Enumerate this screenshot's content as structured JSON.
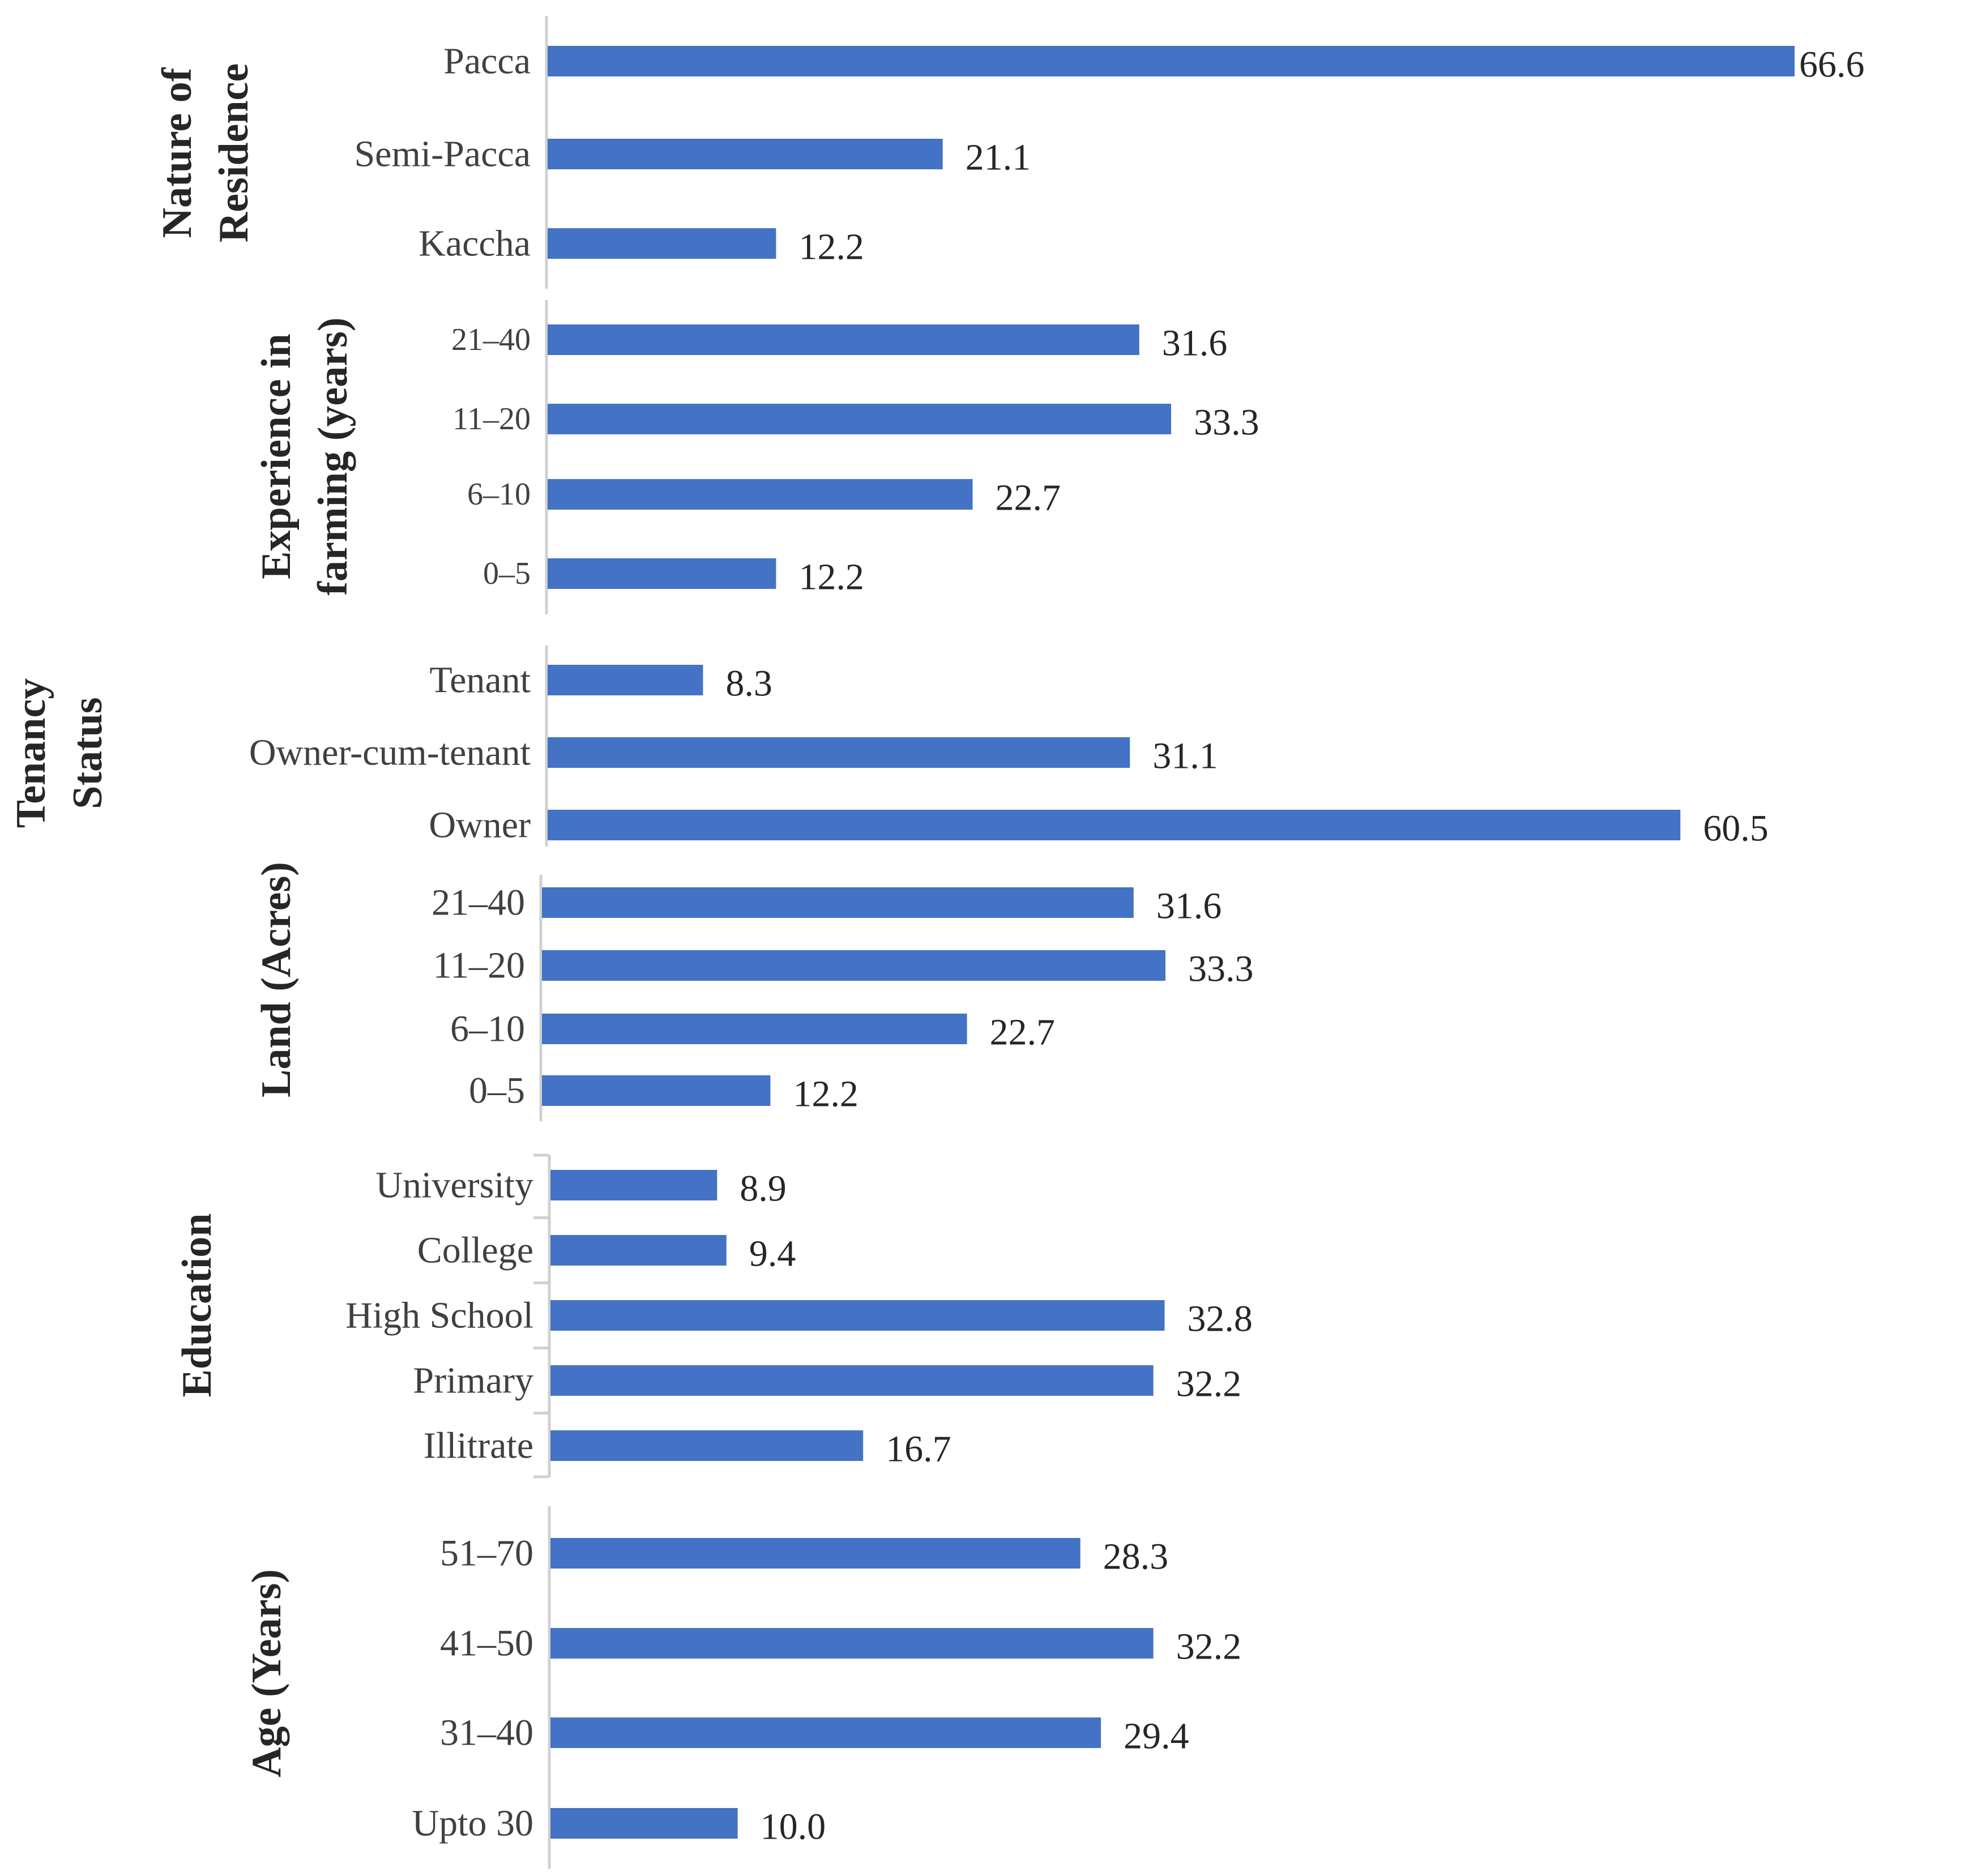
{
  "chart_data": [
    {
      "type": "bar",
      "orientation": "horizontal",
      "title": "Nature of Residence",
      "title_lines": [
        "Nature of",
        "Residence"
      ],
      "categories": [
        "Pacca",
        "Semi-Pacca",
        "Kaccha"
      ],
      "values": [
        66.6,
        21.1,
        12.2
      ],
      "value_labels": [
        "66.6",
        "21.1",
        "12.2"
      ],
      "color": "#4472C4"
    },
    {
      "type": "bar",
      "orientation": "horizontal",
      "title": "Experience in farming (years)",
      "title_lines": [
        "Experience in",
        "farming (years)"
      ],
      "categories": [
        "21–40",
        "11–20",
        "6–10",
        "0–5"
      ],
      "values": [
        31.6,
        33.3,
        22.7,
        12.2
      ],
      "value_labels": [
        "31.6",
        "33.3",
        "22.7",
        "12.2"
      ],
      "color": "#4472C4"
    },
    {
      "type": "bar",
      "orientation": "horizontal",
      "title": "Tenancy Status",
      "title_lines": [
        "Tenancy",
        "Status"
      ],
      "categories": [
        "Tenant",
        "Owner-cum-tenant",
        "Owner"
      ],
      "values": [
        8.3,
        31.1,
        60.5
      ],
      "value_labels": [
        "8.3",
        "31.1",
        "60.5"
      ],
      "color": "#4472C4"
    },
    {
      "type": "bar",
      "orientation": "horizontal",
      "title": "Land (Acres)",
      "title_lines": [
        "Land (Acres)"
      ],
      "categories": [
        "21–40",
        "11–20",
        "6–10",
        "0–5"
      ],
      "values": [
        31.6,
        33.3,
        22.7,
        12.2
      ],
      "value_labels": [
        "31.6",
        "33.3",
        "22.7",
        "12.2"
      ],
      "color": "#4472C4"
    },
    {
      "type": "bar",
      "orientation": "horizontal",
      "title": "Education",
      "title_lines": [
        "Education"
      ],
      "categories": [
        "University",
        "College",
        "High School",
        "Primary",
        "Illitrate"
      ],
      "values": [
        8.9,
        9.4,
        32.8,
        32.2,
        16.7
      ],
      "value_labels": [
        "8.9",
        "9.4",
        "32.8",
        "32.2",
        "16.7"
      ],
      "color": "#4472C4"
    },
    {
      "type": "bar",
      "orientation": "horizontal",
      "title": "Age (Years)",
      "title_lines": [
        "Age (Years)"
      ],
      "categories": [
        "51–70",
        "41–50",
        "31–40",
        "Upto 30"
      ],
      "values": [
        28.3,
        32.2,
        29.4,
        10.0
      ],
      "value_labels": [
        "28.3",
        "32.2",
        "29.4",
        "10.0"
      ],
      "color": "#4472C4"
    }
  ]
}
